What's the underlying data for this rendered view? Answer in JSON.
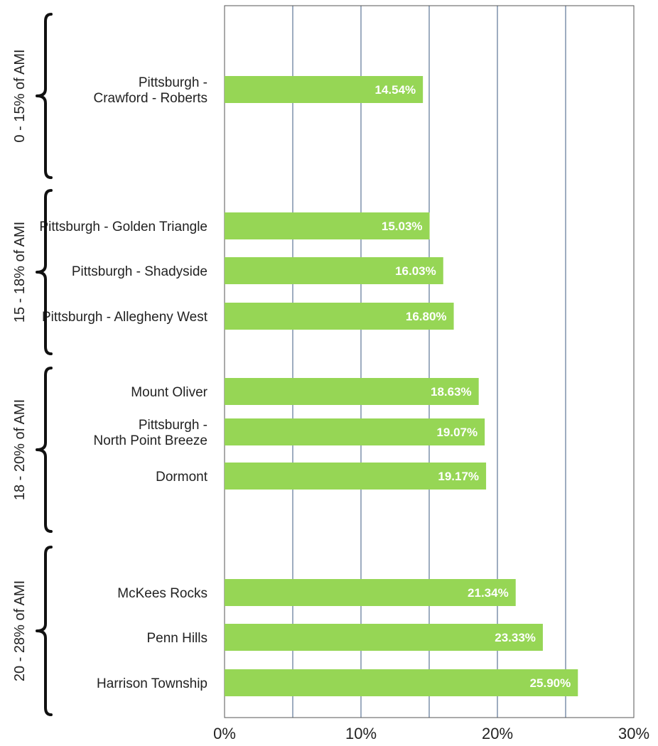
{
  "chart_data": {
    "type": "bar",
    "orientation": "horizontal",
    "title": "",
    "xlabel": "",
    "ylabel": "",
    "xlim": [
      0,
      30
    ],
    "x_ticks": [
      "0%",
      "10%",
      "20%",
      "30%"
    ],
    "grid": true,
    "bar_color": "#96d655",
    "grid_color": "#3e5a80",
    "groups": [
      {
        "label": "0 - 15% of AMI",
        "start": 0,
        "end": 0
      },
      {
        "label": "15 - 18% of AMI",
        "start": 1,
        "end": 3
      },
      {
        "label": "18 - 20% of AMI",
        "start": 4,
        "end": 6
      },
      {
        "label": "20 - 28% of AMI",
        "start": 7,
        "end": 9
      }
    ],
    "bars": [
      {
        "category": [
          "Pittsburgh -",
          "Crawford - Roberts"
        ],
        "value": 14.54,
        "label": "14.54%"
      },
      {
        "category": [
          "Pittsburgh - Golden Triangle"
        ],
        "value": 15.03,
        "label": "15.03%"
      },
      {
        "category": [
          "Pittsburgh - Shadyside"
        ],
        "value": 16.03,
        "label": "16.03%"
      },
      {
        "category": [
          "Pittsburgh - Allegheny West"
        ],
        "value": 16.8,
        "label": "16.80%"
      },
      {
        "category": [
          "Mount Oliver"
        ],
        "value": 18.63,
        "label": "18.63%"
      },
      {
        "category": [
          "Pittsburgh -",
          "North Point Breeze"
        ],
        "value": 19.07,
        "label": "19.07%"
      },
      {
        "category": [
          "Dormont"
        ],
        "value": 19.17,
        "label": "19.17%"
      },
      {
        "category": [
          "McKees Rocks"
        ],
        "value": 21.34,
        "label": "21.34%"
      },
      {
        "category": [
          "Penn Hills"
        ],
        "value": 23.33,
        "label": "23.33%"
      },
      {
        "category": [
          "Harrison Township"
        ],
        "value": 25.9,
        "label": "25.90%"
      }
    ]
  }
}
